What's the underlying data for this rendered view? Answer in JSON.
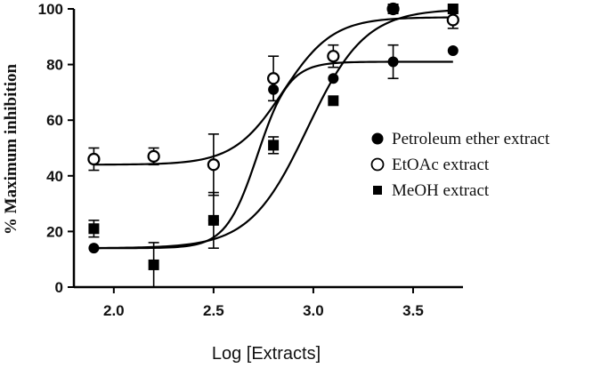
{
  "chart_data": {
    "type": "scatter",
    "xlabel": "Log [Extracts]",
    "ylabel": "% Maximum inhibition",
    "xlim": [
      1.8,
      3.75
    ],
    "ylim": [
      0,
      100
    ],
    "x_ticks": [
      "2.0",
      "2.5",
      "3.0",
      "3.5"
    ],
    "x_tick_values": [
      2.0,
      2.5,
      3.0,
      3.5
    ],
    "y_ticks": [
      "0",
      "20",
      "40",
      "60",
      "80",
      "100"
    ],
    "y_tick_values": [
      0,
      20,
      40,
      60,
      80,
      100
    ],
    "grid": false,
    "legend_position": "right",
    "series": [
      {
        "name": "Petroleum ether extract",
        "marker": "filled-circle",
        "color": "#000000",
        "x": [
          1.9,
          2.5,
          2.8,
          3.1,
          3.4,
          3.7
        ],
        "y": [
          14,
          24,
          71,
          75,
          81,
          85
        ],
        "err": [
          0,
          0,
          4,
          0,
          6,
          0
        ],
        "fit": {
          "bottom": 14,
          "top": 81,
          "logEC50": 2.72,
          "hill": 5.5
        }
      },
      {
        "name": "EtOAc extract",
        "marker": "open-circle",
        "color": "#000000",
        "x": [
          1.9,
          2.2,
          2.5,
          2.8,
          3.1,
          3.4,
          3.7
        ],
        "y": [
          46,
          47,
          44,
          75,
          83,
          100,
          96
        ],
        "err": [
          4,
          3,
          11,
          8,
          4,
          0,
          3
        ],
        "fit": {
          "bottom": 44,
          "top": 97,
          "logEC50": 2.85,
          "hill": 3.5
        }
      },
      {
        "name": "MeOH extract",
        "marker": "filled-square",
        "color": "#000000",
        "x": [
          1.9,
          2.2,
          2.5,
          2.8,
          3.1,
          3.4,
          3.7
        ],
        "y": [
          21,
          8,
          24,
          51,
          67,
          100,
          100
        ],
        "err": [
          3,
          8,
          10,
          3,
          0,
          0,
          0
        ],
        "fit": {
          "bottom": 14,
          "top": 100,
          "logEC50": 2.97,
          "hill": 3.0
        }
      }
    ]
  }
}
